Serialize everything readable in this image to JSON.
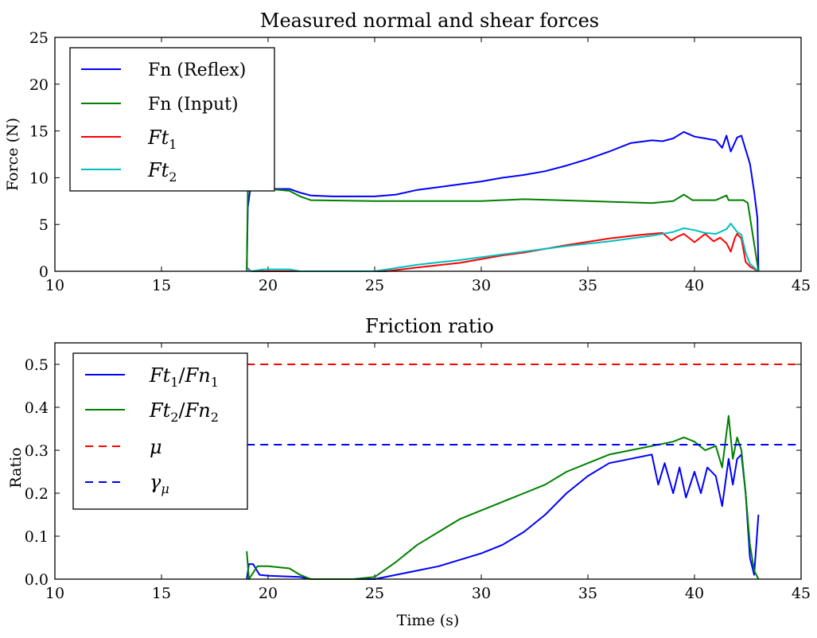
{
  "chart_data": [
    {
      "type": "line",
      "title": "Measured normal and shear forces",
      "xlabel": "",
      "ylabel": "Force (N)",
      "xlim": [
        10,
        45
      ],
      "ylim": [
        0,
        25
      ],
      "xticks": [
        "10",
        "15",
        "20",
        "25",
        "30",
        "35",
        "40",
        "45"
      ],
      "yticks": [
        "0",
        "5",
        "10",
        "15",
        "20",
        "25"
      ],
      "legend_position": "upper-left",
      "series": [
        {
          "name": "Fn (Reflex)",
          "color": "#0000ff",
          "style": "solid",
          "points": [
            [
              19.0,
              0
            ],
            [
              19.05,
              6.8
            ],
            [
              19.15,
              8.6
            ],
            [
              19.5,
              8.9
            ],
            [
              20.0,
              8.8
            ],
            [
              21.0,
              8.8
            ],
            [
              21.5,
              8.4
            ],
            [
              22.0,
              8.1
            ],
            [
              23.0,
              8.0
            ],
            [
              25.0,
              8.0
            ],
            [
              26.0,
              8.2
            ],
            [
              27.0,
              8.7
            ],
            [
              28.0,
              9.0
            ],
            [
              29.0,
              9.3
            ],
            [
              30.0,
              9.6
            ],
            [
              31.0,
              10.0
            ],
            [
              32.0,
              10.3
            ],
            [
              33.0,
              10.7
            ],
            [
              34.0,
              11.3
            ],
            [
              35.0,
              12.0
            ],
            [
              36.0,
              12.8
            ],
            [
              37.0,
              13.7
            ],
            [
              38.0,
              14.0
            ],
            [
              38.5,
              13.9
            ],
            [
              39.0,
              14.2
            ],
            [
              39.5,
              14.9
            ],
            [
              40.0,
              14.4
            ],
            [
              40.5,
              14.2
            ],
            [
              41.0,
              14.0
            ],
            [
              41.3,
              13.2
            ],
            [
              41.5,
              14.5
            ],
            [
              41.7,
              12.8
            ],
            [
              42.0,
              14.3
            ],
            [
              42.2,
              14.5
            ],
            [
              42.4,
              13.0
            ],
            [
              42.6,
              11.5
            ],
            [
              42.8,
              8.5
            ],
            [
              42.95,
              5.7
            ],
            [
              43.0,
              0
            ]
          ]
        },
        {
          "name": "Fn (Input)",
          "color": "#008000",
          "style": "solid",
          "points": [
            [
              19.0,
              0
            ],
            [
              19.05,
              8.6
            ],
            [
              19.5,
              8.7
            ],
            [
              20.0,
              8.8
            ],
            [
              21.0,
              8.6
            ],
            [
              21.5,
              8.0
            ],
            [
              22.0,
              7.6
            ],
            [
              25.0,
              7.5
            ],
            [
              30.0,
              7.5
            ],
            [
              32.0,
              7.7
            ],
            [
              35.0,
              7.5
            ],
            [
              38.0,
              7.3
            ],
            [
              39.0,
              7.5
            ],
            [
              39.5,
              8.2
            ],
            [
              39.9,
              7.6
            ],
            [
              41.0,
              7.6
            ],
            [
              41.5,
              8.1
            ],
            [
              41.6,
              7.6
            ],
            [
              42.3,
              7.6
            ],
            [
              42.5,
              7.3
            ],
            [
              43.0,
              0
            ]
          ]
        },
        {
          "name": "Ft1",
          "label_base": "Ft",
          "label_sub": "1",
          "color": "#ff0000",
          "style": "solid",
          "points": [
            [
              19.0,
              0
            ],
            [
              19.05,
              0.3
            ],
            [
              19.2,
              0
            ],
            [
              25.5,
              0
            ],
            [
              27.0,
              0.4
            ],
            [
              29.0,
              0.9
            ],
            [
              31.0,
              1.7
            ],
            [
              32.0,
              2.0
            ],
            [
              34.0,
              2.8
            ],
            [
              36.0,
              3.5
            ],
            [
              37.5,
              3.9
            ],
            [
              38.5,
              4.1
            ],
            [
              38.9,
              3.3
            ],
            [
              39.2,
              3.7
            ],
            [
              39.5,
              4.0
            ],
            [
              40.0,
              3.1
            ],
            [
              40.5,
              4.0
            ],
            [
              40.9,
              3.2
            ],
            [
              41.2,
              3.6
            ],
            [
              41.5,
              3.0
            ],
            [
              41.7,
              2.1
            ],
            [
              41.9,
              3.6
            ],
            [
              42.0,
              4.0
            ],
            [
              42.2,
              3.5
            ],
            [
              42.4,
              1.0
            ],
            [
              42.6,
              0.5
            ],
            [
              43.0,
              0
            ]
          ]
        },
        {
          "name": "Ft2",
          "label_base": "Ft",
          "label_sub": "2",
          "color": "#00bfbf",
          "style": "solid",
          "points": [
            [
              19.0,
              0
            ],
            [
              19.05,
              0.2
            ],
            [
              19.2,
              0
            ],
            [
              19.8,
              0.2
            ],
            [
              21.0,
              0.2
            ],
            [
              21.5,
              0
            ],
            [
              25.0,
              0
            ],
            [
              27.0,
              0.7
            ],
            [
              29.0,
              1.2
            ],
            [
              31.0,
              1.8
            ],
            [
              32.0,
              2.1
            ],
            [
              34.0,
              2.7
            ],
            [
              36.0,
              3.2
            ],
            [
              38.0,
              3.8
            ],
            [
              39.0,
              4.2
            ],
            [
              39.5,
              4.6
            ],
            [
              40.0,
              4.4
            ],
            [
              40.5,
              4.1
            ],
            [
              41.0,
              4.0
            ],
            [
              41.5,
              4.5
            ],
            [
              41.7,
              5.1
            ],
            [
              42.0,
              4.2
            ],
            [
              42.2,
              3.9
            ],
            [
              42.4,
              2.0
            ],
            [
              42.6,
              0.8
            ],
            [
              42.8,
              0.4
            ],
            [
              43.0,
              0
            ]
          ]
        }
      ]
    },
    {
      "type": "line",
      "title": "Friction ratio",
      "xlabel": "Time (s)",
      "ylabel": "Ratio",
      "xlim": [
        10,
        45
      ],
      "ylim": [
        0,
        0.55
      ],
      "xticks": [
        "10",
        "15",
        "20",
        "25",
        "30",
        "35",
        "40",
        "45"
      ],
      "yticks": [
        "0.0",
        "0.1",
        "0.2",
        "0.3",
        "0.4",
        "0.5"
      ],
      "legend_position": "upper-left",
      "series": [
        {
          "name": "Ft1/Fn1",
          "label_a": "Ft",
          "label_a_sub": "1",
          "label_b": "Fn",
          "label_b_sub": "1",
          "color": "#0000ff",
          "style": "solid",
          "points": [
            [
              19.0,
              0.0
            ],
            [
              19.1,
              0.035
            ],
            [
              19.3,
              0.035
            ],
            [
              19.6,
              0.01
            ],
            [
              20.0,
              0.008
            ],
            [
              21.5,
              0.005
            ],
            [
              22.0,
              0.0
            ],
            [
              25.0,
              0.0
            ],
            [
              26.0,
              0.01
            ],
            [
              28.0,
              0.03
            ],
            [
              29.0,
              0.045
            ],
            [
              30.0,
              0.06
            ],
            [
              31.0,
              0.08
            ],
            [
              32.0,
              0.11
            ],
            [
              33.0,
              0.15
            ],
            [
              34.0,
              0.2
            ],
            [
              35.0,
              0.24
            ],
            [
              36.0,
              0.27
            ],
            [
              37.0,
              0.28
            ],
            [
              38.0,
              0.29
            ],
            [
              38.3,
              0.22
            ],
            [
              38.6,
              0.27
            ],
            [
              39.0,
              0.2
            ],
            [
              39.3,
              0.26
            ],
            [
              39.6,
              0.19
            ],
            [
              40.0,
              0.25
            ],
            [
              40.3,
              0.2
            ],
            [
              40.6,
              0.26
            ],
            [
              41.0,
              0.24
            ],
            [
              41.3,
              0.17
            ],
            [
              41.6,
              0.28
            ],
            [
              41.8,
              0.22
            ],
            [
              42.0,
              0.28
            ],
            [
              42.2,
              0.29
            ],
            [
              42.4,
              0.2
            ],
            [
              42.6,
              0.05
            ],
            [
              42.8,
              0.01
            ],
            [
              43.0,
              0.15
            ]
          ]
        },
        {
          "name": "Ft2/Fn2",
          "label_a": "Ft",
          "label_a_sub": "2",
          "label_b": "Fn",
          "label_b_sub": "2",
          "color": "#008000",
          "style": "solid",
          "points": [
            [
              19.0,
              0.065
            ],
            [
              19.1,
              0.0
            ],
            [
              19.5,
              0.03
            ],
            [
              20.0,
              0.03
            ],
            [
              21.0,
              0.025
            ],
            [
              21.5,
              0.01
            ],
            [
              22.0,
              0.0
            ],
            [
              24.0,
              0.0
            ],
            [
              25.0,
              0.005
            ],
            [
              26.0,
              0.04
            ],
            [
              27.0,
              0.08
            ],
            [
              28.0,
              0.11
            ],
            [
              29.0,
              0.14
            ],
            [
              30.0,
              0.16
            ],
            [
              31.0,
              0.18
            ],
            [
              32.0,
              0.2
            ],
            [
              33.0,
              0.22
            ],
            [
              34.0,
              0.25
            ],
            [
              35.0,
              0.27
            ],
            [
              36.0,
              0.29
            ],
            [
              37.0,
              0.3
            ],
            [
              38.0,
              0.31
            ],
            [
              39.0,
              0.32
            ],
            [
              39.5,
              0.33
            ],
            [
              40.0,
              0.32
            ],
            [
              40.5,
              0.3
            ],
            [
              41.0,
              0.31
            ],
            [
              41.3,
              0.26
            ],
            [
              41.6,
              0.38
            ],
            [
              41.8,
              0.28
            ],
            [
              42.0,
              0.33
            ],
            [
              42.2,
              0.3
            ],
            [
              42.4,
              0.2
            ],
            [
              42.6,
              0.08
            ],
            [
              42.8,
              0.02
            ],
            [
              43.0,
              0.0
            ]
          ]
        },
        {
          "name": "mu",
          "label": "μ",
          "color": "#ff0000",
          "style": "dashed",
          "points": [
            [
              19.0,
              0.5
            ],
            [
              45.0,
              0.5
            ]
          ]
        },
        {
          "name": "gamma_mu",
          "label": "γ",
          "label_sub": "μ",
          "color": "#0000ff",
          "style": "dashed",
          "points": [
            [
              19.0,
              0.313
            ],
            [
              45.0,
              0.313
            ]
          ]
        }
      ]
    }
  ]
}
